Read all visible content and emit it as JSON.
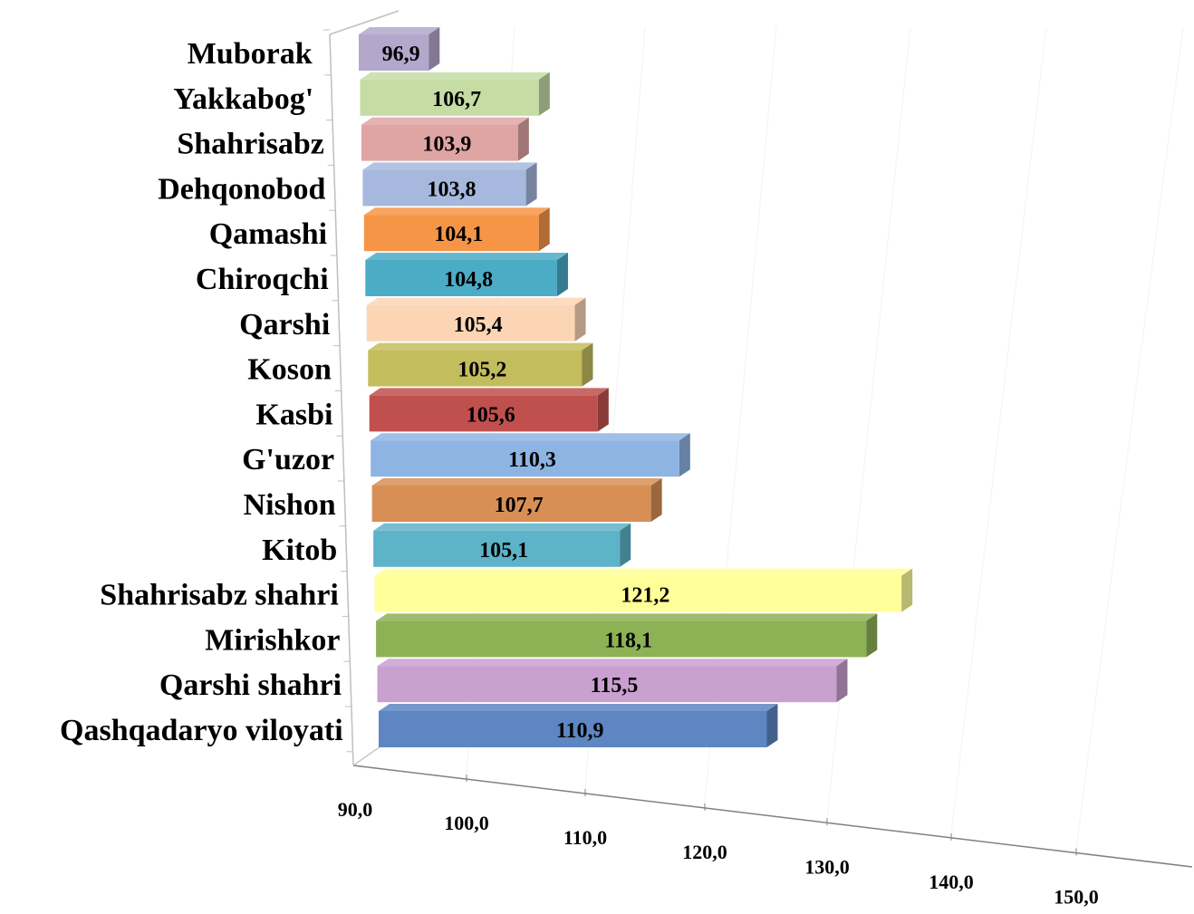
{
  "chart_data": {
    "type": "bar",
    "orientation": "horizontal",
    "three_d": true,
    "categories": [
      "Muborak",
      "Yakkabog'",
      "Shahrisabz",
      "Dehqonobod",
      "Qamashi",
      "Chiroqchi",
      "Qarshi",
      "Koson",
      "Kasbi",
      "G'uzor",
      "Nishon",
      "Kitob",
      "Shahrisabz shahri",
      "Mirishkor",
      "Qarshi shahri",
      "Qashqadaryo viloyati"
    ],
    "values": [
      96.9,
      106.7,
      103.9,
      103.8,
      104.1,
      104.8,
      105.4,
      105.2,
      105.6,
      110.3,
      107.7,
      105.1,
      121.2,
      118.1,
      115.5,
      110.9
    ],
    "value_labels": [
      "96,9",
      "106,7",
      "103,9",
      "103,8",
      "104,1",
      "104,8",
      "105,4",
      "105,2",
      "105,6",
      "110,3",
      "107,7",
      "105,1",
      "121,2",
      "118,1",
      "115,5",
      "110,9"
    ],
    "colors": [
      "#B3A8CC",
      "#C5DCA4",
      "#DFA5A4",
      "#A6B8DD",
      "#F79546",
      "#4BACC6",
      "#FCD5B5",
      "#C4BD5E",
      "#C0504D",
      "#8EB4E3",
      "#D78F55",
      "#5DB3C8",
      "#FFFF99",
      "#8DB255",
      "#C9A0CF",
      "#5D86C2"
    ],
    "xlim": [
      90,
      150
    ],
    "xticks": [
      "90,0",
      "100,0",
      "110,0",
      "120,0",
      "130,0",
      "140,0",
      "150,0"
    ],
    "title": "",
    "xlabel": "",
    "ylabel": "",
    "grid": true,
    "legend": "none"
  }
}
